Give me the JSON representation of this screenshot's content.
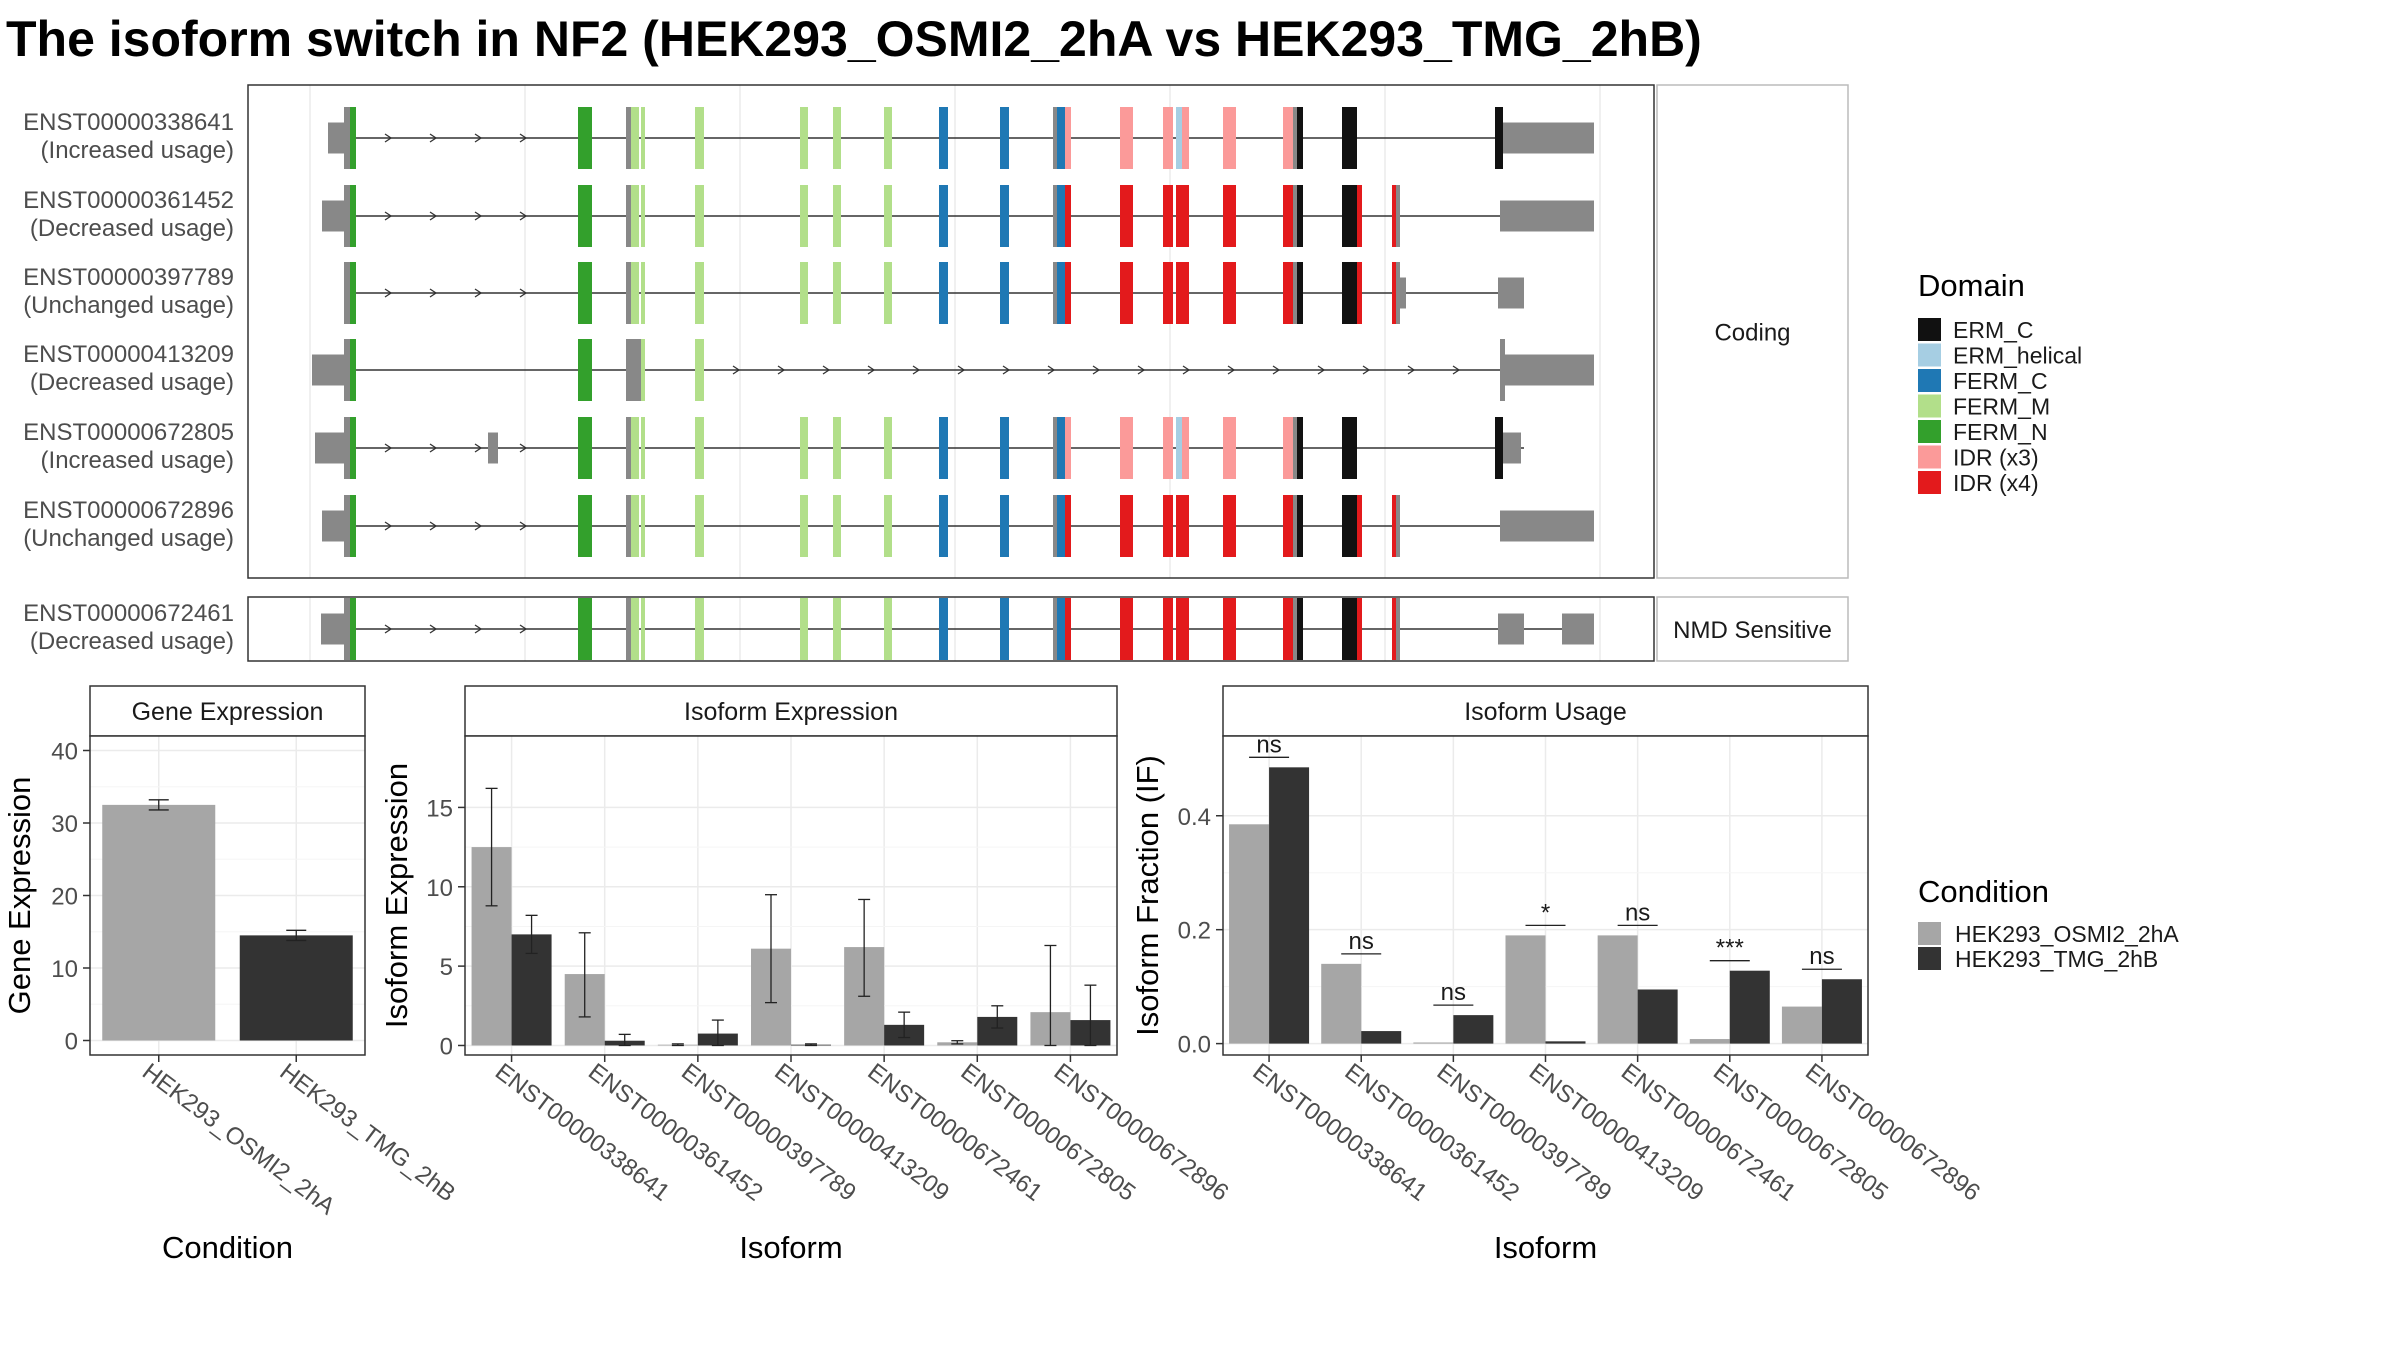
{
  "title": "The isoform switch in NF2 (HEK293_OSMI2_2hA vs HEK293_TMG_2hB)",
  "colors": {
    "ERM_C": "#111111",
    "ERM_helical": "#a6cee3",
    "FERM_C": "#1f78b4",
    "FERM_M": "#b2df8a",
    "FERM_N": "#33a02c",
    "IDR (x3)": "#fb9a99",
    "IDR (x4)": "#e31a1c",
    "utr": "#888888",
    "condA": "#a6a6a6",
    "condB": "#333333"
  },
  "transcript_panel": {
    "facets": [
      "Coding",
      "NMD Sensitive"
    ],
    "transcripts": [
      {
        "id": "ENST00000338641",
        "usage": "(Increased usage)",
        "facet": "Coding",
        "variant": "inc"
      },
      {
        "id": "ENST00000361452",
        "usage": "(Decreased usage)",
        "facet": "Coding",
        "variant": "full"
      },
      {
        "id": "ENST00000397789",
        "usage": "(Unchanged usage)",
        "facet": "Coding",
        "variant": "short3"
      },
      {
        "id": "ENST00000413209",
        "usage": "(Decreased usage)",
        "facet": "Coding",
        "variant": "trunc"
      },
      {
        "id": "ENST00000672805",
        "usage": "(Increased usage)",
        "facet": "Coding",
        "variant": "inc5"
      },
      {
        "id": "ENST00000672896",
        "usage": "(Unchanged usage)",
        "facet": "Coding",
        "variant": "full"
      },
      {
        "id": "ENST00000672461",
        "usage": "(Decreased usage)",
        "facet": "NMD Sensitive",
        "variant": "nmd"
      }
    ],
    "legend_title": "Domain",
    "legend_items": [
      "ERM_C",
      "ERM_helical",
      "FERM_C",
      "FERM_M",
      "FERM_N",
      "IDR (x3)",
      "IDR (x4)"
    ]
  },
  "chart_data": [
    {
      "type": "bar",
      "title": "Gene Expression",
      "xlabel": "Condition",
      "ylabel": "Gene Expression",
      "categories": [
        "HEK293_OSMI2_2hA",
        "HEK293_TMG_2hB"
      ],
      "values": [
        32.5,
        14.5
      ],
      "errors": [
        [
          31.8,
          33.2
        ],
        [
          13.8,
          15.2
        ]
      ],
      "ylim": [
        -2,
        42
      ],
      "yticks": [
        0,
        10,
        20,
        30,
        40
      ]
    },
    {
      "type": "bar",
      "title": "Isoform Expression",
      "xlabel": "Isoform",
      "ylabel": "Isoform Expression",
      "categories": [
        "ENST00000338641",
        "ENST00000361452",
        "ENST00000397789",
        "ENST00000413209",
        "ENST00000672461",
        "ENST00000672805",
        "ENST00000672896"
      ],
      "series": [
        {
          "name": "HEK293_OSMI2_2hA",
          "values": [
            12.5,
            4.5,
            0.05,
            6.1,
            6.2,
            0.2,
            2.1
          ],
          "errors": [
            [
              8.8,
              16.2
            ],
            [
              1.8,
              7.1
            ],
            [
              0.0,
              0.1
            ],
            [
              2.7,
              9.5
            ],
            [
              3.1,
              9.2
            ],
            [
              0.1,
              0.3
            ],
            [
              0.0,
              6.3
            ]
          ]
        },
        {
          "name": "HEK293_TMG_2hB",
          "values": [
            7.0,
            0.3,
            0.75,
            0.05,
            1.3,
            1.8,
            1.6
          ],
          "errors": [
            [
              5.8,
              8.2
            ],
            [
              0.0,
              0.7
            ],
            [
              0.0,
              1.6
            ],
            [
              0.0,
              0.1
            ],
            [
              0.5,
              2.1
            ],
            [
              1.1,
              2.5
            ],
            [
              0.0,
              3.8
            ]
          ]
        }
      ],
      "ylim": [
        -0.6,
        19.5
      ],
      "yticks": [
        0,
        5,
        10,
        15
      ]
    },
    {
      "type": "bar",
      "title": "Isoform Usage",
      "xlabel": "Isoform",
      "ylabel": "Isoform Fraction (IF)",
      "categories": [
        "ENST00000338641",
        "ENST00000361452",
        "ENST00000397789",
        "ENST00000413209",
        "ENST00000672461",
        "ENST00000672805",
        "ENST00000672896"
      ],
      "series": [
        {
          "name": "HEK293_OSMI2_2hA",
          "values": [
            0.385,
            0.14,
            0.002,
            0.19,
            0.19,
            0.008,
            0.065
          ]
        },
        {
          "name": "HEK293_TMG_2hB",
          "values": [
            0.485,
            0.022,
            0.05,
            0.004,
            0.095,
            0.128,
            0.113
          ]
        }
      ],
      "significance": [
        "ns",
        "ns",
        "ns",
        "*",
        "ns",
        "***",
        "ns"
      ],
      "ylim": [
        -0.02,
        0.54
      ],
      "yticks": [
        0.0,
        0.2,
        0.4
      ],
      "yticklabels": [
        "0.0",
        "0.2",
        "0.4"
      ]
    }
  ],
  "condition_legend": {
    "title": "Condition",
    "items": [
      "HEK293_OSMI2_2hA",
      "HEK293_TMG_2hB"
    ]
  }
}
